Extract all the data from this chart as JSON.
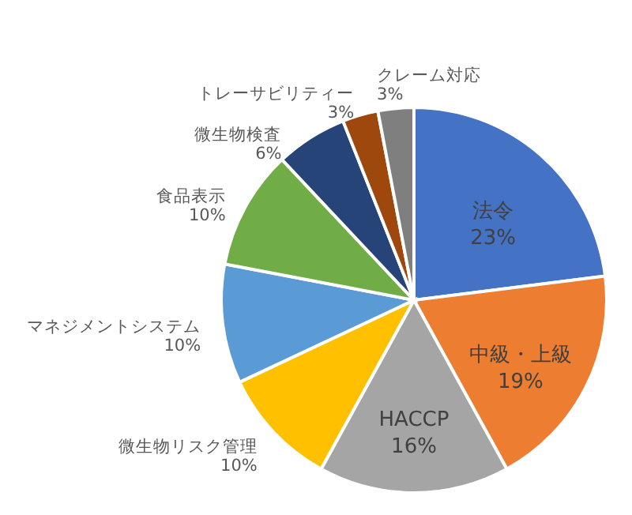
{
  "chart_data": {
    "type": "pie",
    "categories": [
      "法令",
      "中級・上級",
      "HACCP",
      "微生物リスク管理",
      "マネジメントシステム",
      "食品表示",
      "微生物検査",
      "トレーサビリティー",
      "クレーム対応"
    ],
    "values": [
      23,
      19,
      16,
      10,
      10,
      10,
      6,
      3,
      3
    ],
    "value_labels": [
      "23%",
      "19%",
      "16%",
      "10%",
      "10%",
      "10%",
      "6%",
      "3%",
      "3%"
    ],
    "colors": [
      "#4472c4",
      "#ed7d31",
      "#a5a5a5",
      "#ffc000",
      "#5b9bd5",
      "#70ad47",
      "#264478",
      "#9e480e",
      "#7f7f7f"
    ]
  }
}
